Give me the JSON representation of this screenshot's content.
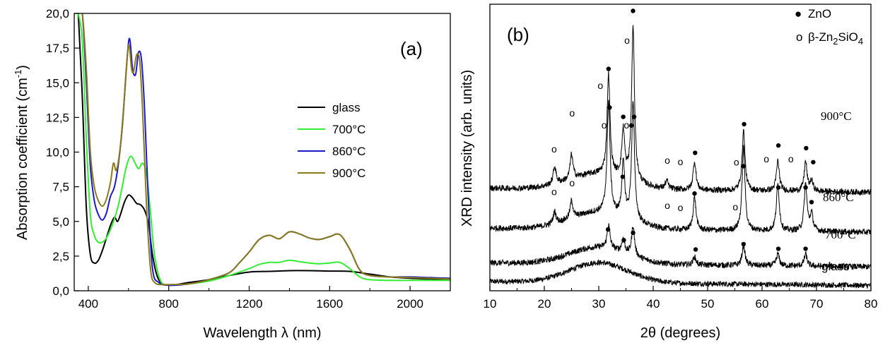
{
  "chart_data": [
    {
      "type": "line",
      "panel_label": "(a)",
      "xlabel": "Wavelength λ (nm)",
      "ylabel_main": "Absorption coefficient (cm",
      "ylabel_sup": "-1",
      "ylabel_end": ")",
      "xlim": [
        330,
        2200
      ],
      "ylim": [
        0,
        20
      ],
      "x_ticks": [
        400,
        800,
        1200,
        1600,
        2000
      ],
      "x_tick_labels": [
        "400",
        "800",
        "1200",
        "1600",
        "2000"
      ],
      "y_ticks": [
        0,
        2.5,
        5,
        7.5,
        10,
        12.5,
        15,
        17.5,
        20
      ],
      "y_tick_labels": [
        "0,0",
        "2,5",
        "5,0",
        "7,5",
        "10,0",
        "12,5",
        "15,0",
        "17,5",
        "20,0"
      ],
      "legend_position": "right-middle",
      "series": [
        {
          "name": "glass",
          "color": "#000000",
          "x": [
            350,
            370,
            390,
            410,
            430,
            450,
            470,
            490,
            510,
            530,
            545,
            560,
            580,
            600,
            620,
            640,
            660,
            680,
            700,
            720,
            750,
            800,
            900,
            1000,
            1100,
            1200,
            1300,
            1400,
            1500,
            1600,
            1700,
            1800,
            1900,
            2000,
            2100,
            2200
          ],
          "y": [
            20,
            14,
            6,
            2.6,
            2.0,
            2.2,
            2.9,
            3.8,
            4.7,
            5.3,
            5.0,
            5.5,
            6.4,
            6.9,
            6.7,
            6.3,
            6.2,
            5.8,
            4.8,
            2.5,
            0.8,
            0.4,
            0.6,
            0.8,
            1.1,
            1.35,
            1.4,
            1.45,
            1.45,
            1.42,
            1.4,
            1.2,
            1.0,
            0.9,
            0.85,
            0.8
          ]
        },
        {
          "name": "700°C",
          "color": "#33ee33",
          "x": [
            350,
            370,
            390,
            410,
            430,
            450,
            470,
            490,
            510,
            530,
            550,
            570,
            590,
            610,
            630,
            650,
            670,
            690,
            710,
            730,
            760,
            800,
            900,
            1000,
            1100,
            1200,
            1250,
            1300,
            1350,
            1400,
            1450,
            1500,
            1550,
            1600,
            1650,
            1700,
            1750,
            1800,
            1900,
            2000,
            2100,
            2200
          ],
          "y": [
            20,
            18,
            11,
            5.5,
            4.0,
            3.5,
            3.5,
            3.8,
            4.4,
            5.2,
            6.2,
            7.6,
            9.0,
            9.7,
            9.3,
            8.8,
            9.2,
            8.4,
            5.5,
            2.5,
            0.7,
            0.4,
            0.5,
            0.7,
            1.1,
            1.6,
            1.9,
            2.05,
            2.05,
            2.2,
            2.1,
            2.0,
            1.95,
            2.0,
            2.05,
            1.6,
            1.0,
            0.8,
            0.75,
            0.75,
            0.75,
            0.75
          ]
        },
        {
          "name": "860°C",
          "color": "#1a1acc",
          "x": [
            350,
            370,
            390,
            410,
            430,
            450,
            470,
            490,
            510,
            530,
            550,
            570,
            590,
            605,
            620,
            635,
            650,
            665,
            680,
            700,
            720,
            750,
            800,
            900,
            1000,
            1100,
            1150,
            1200,
            1250,
            1300,
            1350,
            1400,
            1450,
            1500,
            1550,
            1600,
            1650,
            1700,
            1750,
            1800,
            1900,
            2000,
            2100,
            2200
          ],
          "y": [
            20,
            20,
            15,
            9,
            6.5,
            5.5,
            5.1,
            5.6,
            6.8,
            7.5,
            9.2,
            12.0,
            16.2,
            18.2,
            16.0,
            15.6,
            17.2,
            16.6,
            13.0,
            6.0,
            1.5,
            0.6,
            0.4,
            0.5,
            0.8,
            1.3,
            2.0,
            2.8,
            3.7,
            4.0,
            3.75,
            4.25,
            4.1,
            3.8,
            3.7,
            3.9,
            4.05,
            3.0,
            1.5,
            1.1,
            1.0,
            1.0,
            0.95,
            0.9
          ]
        },
        {
          "name": "900°C",
          "color": "#8a7a1a",
          "x": [
            350,
            370,
            390,
            410,
            430,
            450,
            470,
            490,
            510,
            525,
            540,
            560,
            580,
            600,
            615,
            625,
            640,
            655,
            670,
            690,
            710,
            730,
            760,
            800,
            900,
            1000,
            1100,
            1150,
            1200,
            1250,
            1300,
            1350,
            1400,
            1450,
            1500,
            1550,
            1600,
            1650,
            1700,
            1750,
            1800,
            1900,
            2000,
            2100,
            2200
          ],
          "y": [
            20,
            20,
            16,
            10,
            7.5,
            6.5,
            6.1,
            6.6,
            7.8,
            9.2,
            8.7,
            10.5,
            14.0,
            17.7,
            16.0,
            15.8,
            17.0,
            16.6,
            13.0,
            6.0,
            1.5,
            0.6,
            0.45,
            0.45,
            0.5,
            0.8,
            1.3,
            2.0,
            2.8,
            3.7,
            4.0,
            3.75,
            4.25,
            4.1,
            3.8,
            3.7,
            3.9,
            4.05,
            3.0,
            1.5,
            1.1,
            1.0,
            0.95,
            0.9,
            0.85
          ]
        }
      ]
    },
    {
      "type": "line",
      "panel_label": "(b)",
      "xlabel": "2θ (degrees)",
      "ylabel": "XRD intensity (arb. units)",
      "xlim": [
        10,
        80
      ],
      "x_ticks": [
        10,
        20,
        30,
        40,
        50,
        60,
        70,
        80
      ],
      "x_tick_labels": [
        "10",
        "20",
        "30",
        "40",
        "50",
        "60",
        "70",
        "80"
      ],
      "legend": [
        {
          "symbol": "●",
          "label": "ZnO"
        },
        {
          "symbol": "o",
          "label_pre": "β-Zn",
          "sub1": "2",
          "label_mid": "SiO",
          "sub2": "4"
        }
      ],
      "series": [
        {
          "name": "glass",
          "label": "glass",
          "base": 0.8,
          "amorphous": 3.0,
          "peaks": [],
          "noise": 0.8
        },
        {
          "name": "700°C",
          "label": "700°C",
          "base": 3.6,
          "amorphous": 2.5,
          "noise": 0.9,
          "peaks": [
            [
              31.8,
              3.5
            ],
            [
              34.5,
              2.0
            ],
            [
              36.3,
              4.5
            ],
            [
              47.6,
              1.2
            ],
            [
              56.6,
              3.0
            ],
            [
              62.9,
              1.8
            ],
            [
              68.0,
              1.8
            ]
          ]
        },
        {
          "name": "860°C",
          "label": "860°C",
          "base": 8.8,
          "amorphous": 2.5,
          "noise": 0.9,
          "peaks": [
            [
              21.9,
              1.8
            ],
            [
              25.0,
              2.6
            ],
            [
              31.8,
              17.0
            ],
            [
              34.5,
              8.0
            ],
            [
              36.3,
              17.5
            ],
            [
              47.6,
              5.0
            ],
            [
              56.6,
              12.5
            ],
            [
              62.9,
              7.0
            ],
            [
              68.0,
              7.0
            ],
            [
              69.1,
              2.5
            ]
          ]
        },
        {
          "name": "900°C",
          "label": "900°C",
          "base": 14.8,
          "amorphous": 2.3,
          "noise": 0.9,
          "peaks": [
            [
              21.9,
              2.6
            ],
            [
              25.0,
              3.7
            ],
            [
              31.8,
              15.0
            ],
            [
              34.5,
              7.0
            ],
            [
              36.3,
              23.0
            ],
            [
              42.5,
              1.2
            ],
            [
              47.6,
              4.3
            ],
            [
              56.6,
              9.0
            ],
            [
              62.9,
              4.5
            ],
            [
              68.0,
              4.4
            ],
            [
              69.1,
              1.5
            ]
          ]
        }
      ],
      "markers": [
        {
          "symbol": "●",
          "x": 36.3,
          "y": 42
        },
        {
          "symbol": "o",
          "x": 35.2,
          "y": 37.5
        },
        {
          "symbol": "●",
          "x": 31.8,
          "y": 33.3
        },
        {
          "symbol": "o",
          "x": 30.3,
          "y": 30.7
        },
        {
          "symbol": "o",
          "x": 25.1,
          "y": 26.6
        },
        {
          "symbol": "●",
          "x": 34.5,
          "y": 26.1
        },
        {
          "symbol": "●",
          "x": 36.5,
          "y": 26.1
        },
        {
          "symbol": "o",
          "x": 21.8,
          "y": 21.2
        },
        {
          "symbol": "o",
          "x": 42.6,
          "y": 19.5
        },
        {
          "symbol": "o",
          "x": 45.0,
          "y": 19.3
        },
        {
          "symbol": "●",
          "x": 47.7,
          "y": 20.7
        },
        {
          "symbol": "●",
          "x": 56.7,
          "y": 25.0
        },
        {
          "symbol": "o",
          "x": 55.3,
          "y": 19.2
        },
        {
          "symbol": "o",
          "x": 60.8,
          "y": 19.7
        },
        {
          "symbol": "o",
          "x": 65.3,
          "y": 19.7
        },
        {
          "symbol": "●",
          "x": 63.0,
          "y": 21.8
        },
        {
          "symbol": "●",
          "x": 68.1,
          "y": 21.4
        },
        {
          "symbol": "●",
          "x": 69.4,
          "y": 19.3
        },
        {
          "symbol": "●",
          "x": 32.0,
          "y": 27.5
        },
        {
          "symbol": "o",
          "x": 31.0,
          "y": 24.8
        },
        {
          "symbol": "o",
          "x": 35.1,
          "y": 24.8
        },
        {
          "symbol": "o",
          "x": 25.1,
          "y": 16.1
        },
        {
          "symbol": "o",
          "x": 21.8,
          "y": 14.8
        },
        {
          "symbol": "●",
          "x": 34.4,
          "y": 17.1
        },
        {
          "symbol": "●",
          "x": 36.0,
          "y": 24.8
        },
        {
          "symbol": "o",
          "x": 42.6,
          "y": 12.7
        },
        {
          "symbol": "o",
          "x": 45.0,
          "y": 12.4
        },
        {
          "symbol": "●",
          "x": 47.6,
          "y": 14.6
        },
        {
          "symbol": "o",
          "x": 55.1,
          "y": 12.5
        },
        {
          "symbol": "●",
          "x": 56.6,
          "y": 18.7
        },
        {
          "symbol": "●",
          "x": 63.0,
          "y": 15.5
        },
        {
          "symbol": "●",
          "x": 68.0,
          "y": 15.5
        },
        {
          "symbol": "●",
          "x": 69.1,
          "y": 13.3
        },
        {
          "symbol": "●",
          "x": 31.7,
          "y": 9.2
        },
        {
          "symbol": "●",
          "x": 34.6,
          "y": 7.6
        },
        {
          "symbol": "●",
          "x": 36.3,
          "y": 8.7
        },
        {
          "symbol": "●",
          "x": 47.8,
          "y": 6.2
        },
        {
          "symbol": "●",
          "x": 56.6,
          "y": 7.0
        },
        {
          "symbol": "●",
          "x": 63.0,
          "y": 6.3
        },
        {
          "symbol": "●",
          "x": 68.0,
          "y": 6.3
        }
      ]
    }
  ]
}
